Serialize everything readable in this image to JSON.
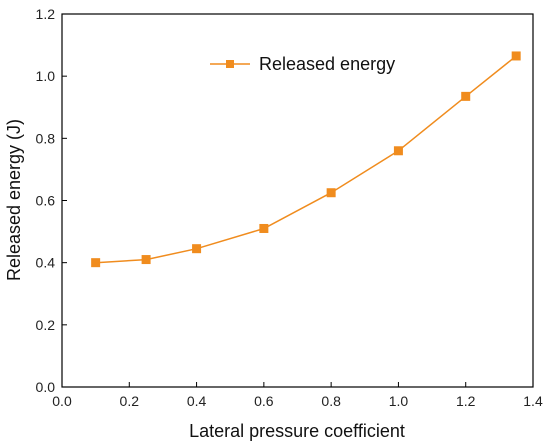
{
  "chart_data": {
    "type": "line",
    "title": "",
    "xlabel": "Lateral pressure coefficient",
    "ylabel": "Released energy (J)",
    "xlim": [
      0.0,
      1.4
    ],
    "ylim": [
      0.0,
      1.2
    ],
    "xticks": [
      "0.0",
      "0.2",
      "0.4",
      "0.6",
      "0.8",
      "1.0",
      "1.2",
      "1.4"
    ],
    "yticks": [
      "0.0",
      "0.2",
      "0.4",
      "0.6",
      "0.8",
      "1.0",
      "1.2"
    ],
    "grid": false,
    "legend_position": "top-center",
    "series": [
      {
        "name": "Released energy",
        "color": "#f08c1e",
        "marker": "square",
        "x": [
          0.1,
          0.25,
          0.4,
          0.6,
          0.8,
          1.0,
          1.2,
          1.35
        ],
        "y": [
          0.4,
          0.41,
          0.445,
          0.51,
          0.625,
          0.76,
          0.935,
          1.065
        ]
      }
    ]
  }
}
